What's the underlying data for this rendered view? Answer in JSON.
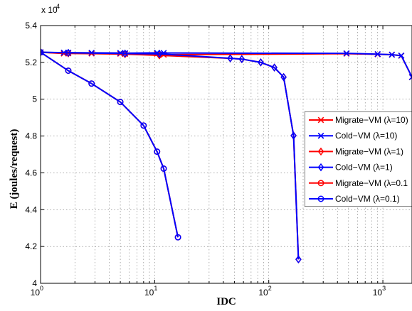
{
  "chart_data": {
    "type": "line",
    "xlabel": "IDC",
    "ylabel": "E (joules/request)",
    "x_scale": "log",
    "xlim": [
      1,
      1800
    ],
    "ylim": [
      40000,
      54000
    ],
    "y_multiplier_label": "x 10",
    "y_multiplier_exp": "4",
    "x_ticks": [
      {
        "value": 1,
        "base": "10",
        "exp": "0"
      },
      {
        "value": 10,
        "base": "10",
        "exp": "1"
      },
      {
        "value": 100,
        "base": "10",
        "exp": "2"
      },
      {
        "value": 1000,
        "base": "10",
        "exp": "3"
      }
    ],
    "y_ticks": [
      {
        "value": 40000,
        "label": "4"
      },
      {
        "value": 42000,
        "label": "4.2"
      },
      {
        "value": 44000,
        "label": "4.4"
      },
      {
        "value": 46000,
        "label": "4.6"
      },
      {
        "value": 48000,
        "label": "4.8"
      },
      {
        "value": 50000,
        "label": "5"
      },
      {
        "value": 52000,
        "label": "5.2"
      },
      {
        "value": 54000,
        "label": "5.4"
      }
    ],
    "grid": true,
    "legend_position": "right",
    "series": [
      {
        "name": "Migrate−VM (λ=10)",
        "color": "#ff0000",
        "marker": "x",
        "x": [
          1,
          1.6,
          1.75,
          2.8,
          5,
          5.5,
          10.5,
          12,
          480,
          900,
          1200,
          1450,
          1800
        ],
        "y": [
          52550,
          52480,
          52490,
          52480,
          52470,
          52460,
          52470,
          52420,
          52470,
          52440,
          52420,
          52360,
          51200
        ]
      },
      {
        "name": "Cold−VM (λ=10)",
        "color": "#0000ff",
        "marker": "x",
        "x": [
          1,
          1.6,
          1.75,
          2.8,
          5,
          5.5,
          10.5,
          12,
          480,
          900,
          1200,
          1450,
          1800
        ],
        "y": [
          52550,
          52530,
          52530,
          52520,
          52510,
          52500,
          52520,
          52510,
          52490,
          52450,
          52420,
          52370,
          51200
        ]
      },
      {
        "name": "Migrate−VM (λ=1)",
        "color": "#ff0000",
        "marker": "diamond",
        "x": [
          1,
          1.75,
          5.5,
          11,
          46,
          58,
          85,
          112,
          135,
          165,
          182
        ],
        "y": [
          52550,
          52490,
          52450,
          52380,
          52220,
          52180,
          52000,
          51720,
          51200,
          48020,
          41300
        ]
      },
      {
        "name": "Cold−VM (λ=1)",
        "color": "#0000ff",
        "marker": "diamond",
        "x": [
          1,
          1.75,
          5.5,
          11,
          46,
          58,
          85,
          112,
          135,
          165,
          182
        ],
        "y": [
          52550,
          52520,
          52480,
          52460,
          52220,
          52180,
          52000,
          51720,
          51200,
          48020,
          41300
        ]
      },
      {
        "name": "Migrate−VM (λ=0.1",
        "color": "#ff0000",
        "marker": "circle",
        "x": [
          1,
          1.75,
          2.8,
          5,
          8,
          10.5,
          12,
          16
        ],
        "y": [
          52550,
          51550,
          50850,
          49850,
          48570,
          47150,
          46230,
          42500
        ]
      },
      {
        "name": "Cold−VM (λ=0.1)",
        "color": "#0000ff",
        "marker": "circle",
        "x": [
          1,
          1.75,
          2.8,
          5,
          8,
          10.5,
          12,
          16
        ],
        "y": [
          52550,
          51550,
          50850,
          49850,
          48570,
          47150,
          46230,
          42500
        ]
      }
    ]
  }
}
